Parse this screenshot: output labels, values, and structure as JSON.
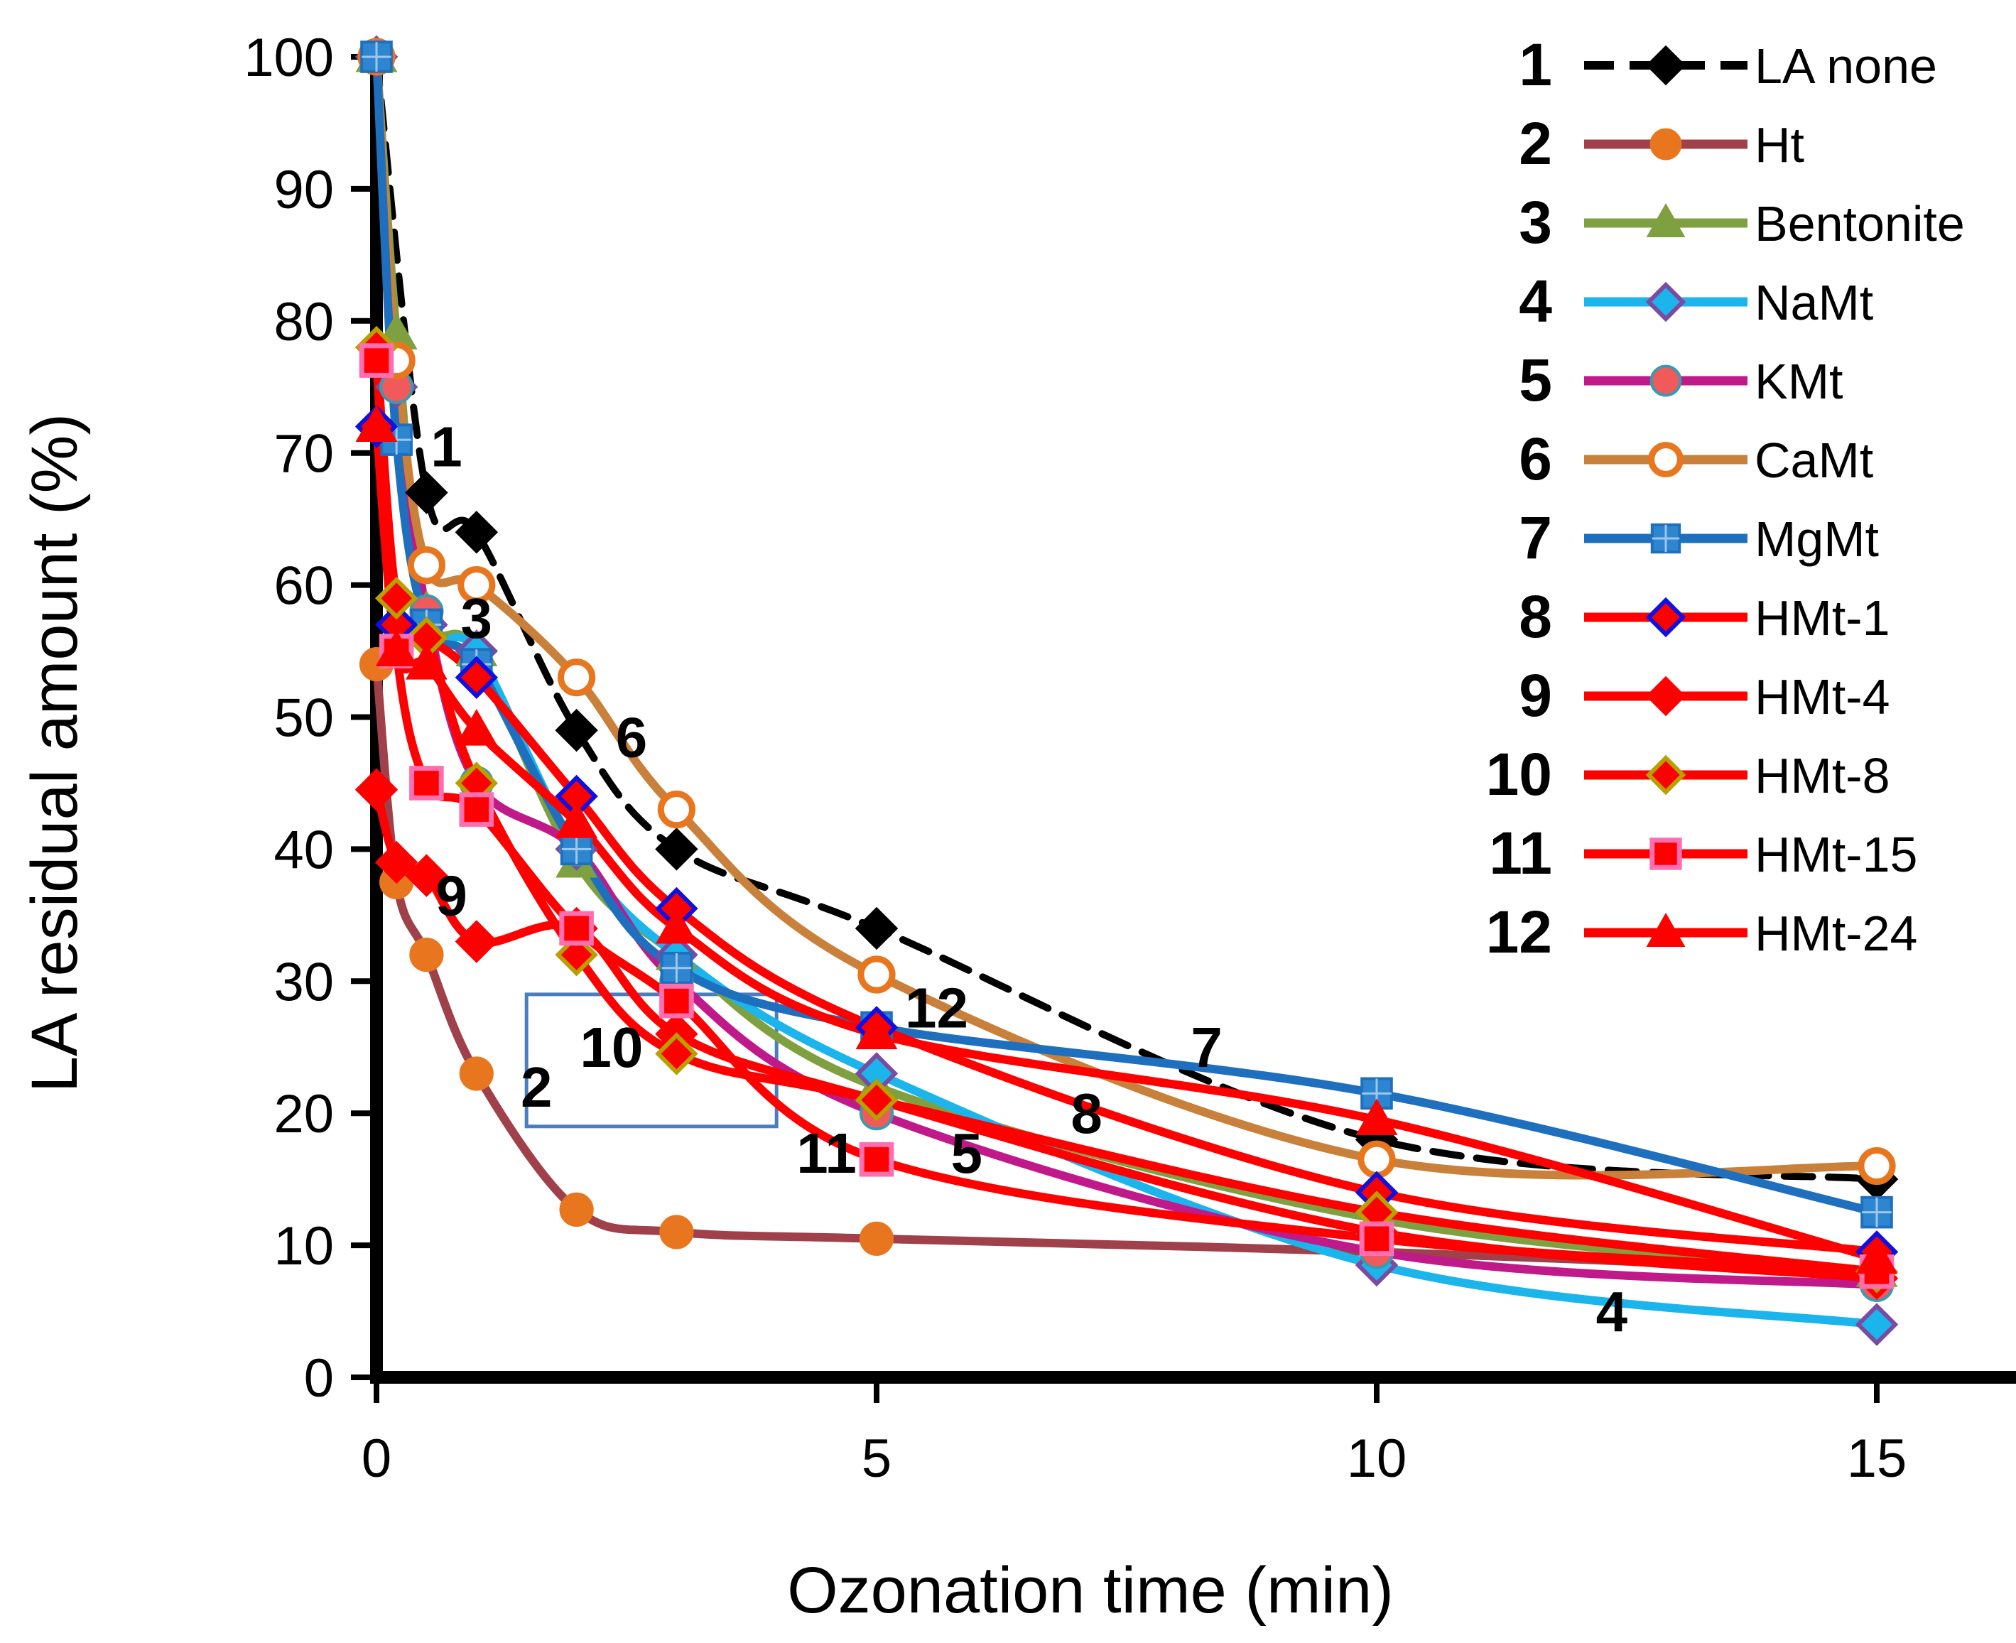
{
  "chart_data": {
    "type": "line",
    "title": "",
    "xlabel": "Ozonation time (min)",
    "ylabel": "LA residual amount (%)",
    "xlim": [
      0,
      16
    ],
    "ylim": [
      0,
      100
    ],
    "xticks": [
      0,
      5,
      10,
      15
    ],
    "yticks": [
      0,
      10,
      20,
      30,
      40,
      50,
      60,
      70,
      80,
      90,
      100
    ],
    "grid": false,
    "legend_position": "top-right",
    "series": [
      {
        "id": 1,
        "name": "LA none",
        "color": "#000000",
        "dash": true,
        "marker": "diamond",
        "marker_fill": "#000000",
        "marker_stroke": "#000000",
        "x": [
          0,
          0.5,
          1,
          2,
          3,
          5,
          10,
          15
        ],
        "y": [
          100,
          67,
          64,
          49,
          40,
          34,
          18,
          15
        ]
      },
      {
        "id": 2,
        "name": "Ht",
        "color": "#A0404A",
        "dash": false,
        "marker": "circle",
        "marker_fill": "#E8761E",
        "marker_stroke": "#E8761E",
        "x": [
          0,
          0.2,
          0.5,
          1,
          2,
          3,
          5,
          10,
          15
        ],
        "y": [
          54,
          37.5,
          32,
          23,
          12.7,
          11,
          10.5,
          9.5,
          8
        ]
      },
      {
        "id": 3,
        "name": "Bentonite",
        "color": "#7FA040",
        "dash": false,
        "marker": "triangle",
        "marker_fill": "#7FA040",
        "marker_stroke": "#7FA040",
        "x": [
          0,
          0.2,
          0.5,
          1,
          2,
          3,
          5,
          10,
          15
        ],
        "y": [
          100,
          79,
          58,
          55,
          39,
          32,
          22,
          12,
          8
        ]
      },
      {
        "id": 4,
        "name": "NaMt",
        "color": "#1BB5EC",
        "dash": false,
        "marker": "diamond",
        "marker_fill": "#1BB5EC",
        "marker_stroke": "#7A4BA0",
        "x": [
          0,
          0.2,
          0.5,
          1,
          2,
          3,
          5,
          10,
          15
        ],
        "y": [
          100,
          75,
          57,
          55,
          40,
          32,
          23,
          8.5,
          4
        ]
      },
      {
        "id": 5,
        "name": "KMt",
        "color": "#C0198A",
        "dash": false,
        "marker": "circle",
        "marker_fill": "#F05A5A",
        "marker_stroke": "#3A9AB0",
        "x": [
          0,
          0.2,
          0.5,
          1,
          2,
          3,
          5,
          10,
          15
        ],
        "y": [
          100,
          75,
          58,
          45,
          40,
          30,
          20,
          9.5,
          7
        ]
      },
      {
        "id": 6,
        "name": "CaMt",
        "color": "#C9803A",
        "dash": false,
        "marker": "circle-open",
        "marker_fill": "#ffffff",
        "marker_stroke": "#E8761E",
        "x": [
          0,
          0.2,
          0.5,
          1,
          2,
          3,
          5,
          10,
          15
        ],
        "y": [
          100,
          77,
          61.5,
          60,
          53,
          43,
          30.5,
          16.5,
          16
        ]
      },
      {
        "id": 7,
        "name": "MgMt",
        "color": "#1F6FBF",
        "dash": false,
        "marker": "square-plus",
        "marker_fill": "#2E86D0",
        "marker_stroke": "#2E86D0",
        "x": [
          0,
          0.2,
          0.5,
          1,
          2,
          3,
          5,
          10,
          15
        ],
        "y": [
          100,
          71,
          57,
          54,
          40,
          31,
          26.5,
          21.5,
          12.5
        ]
      },
      {
        "id": 8,
        "name": "HMt-1",
        "color": "#FF0000",
        "dash": false,
        "marker": "diamond",
        "marker_fill": "#FF0000",
        "marker_stroke": "#1010E0",
        "x": [
          0,
          0.2,
          0.5,
          1,
          2,
          3,
          5,
          10,
          15
        ],
        "y": [
          72,
          57,
          56,
          53,
          44,
          35.5,
          26.5,
          14,
          9.5
        ]
      },
      {
        "id": 9,
        "name": "HMt-4",
        "color": "#FF0000",
        "dash": false,
        "marker": "diamond",
        "marker_fill": "#FF0000",
        "marker_stroke": "#FF0000",
        "x": [
          0,
          0.2,
          0.5,
          1,
          2,
          3,
          5,
          10,
          15
        ],
        "y": [
          44.5,
          39,
          38,
          33,
          34,
          26,
          21,
          11,
          7.5
        ]
      },
      {
        "id": 10,
        "name": "HMt-8",
        "color": "#FF0000",
        "dash": false,
        "marker": "diamond",
        "marker_fill": "#FF0000",
        "marker_stroke": "#B8A000",
        "x": [
          0,
          0.2,
          0.5,
          1,
          2,
          3,
          5,
          10,
          15
        ],
        "y": [
          78,
          59,
          56,
          45,
          32,
          24.5,
          21,
          12.5,
          8
        ]
      },
      {
        "id": 11,
        "name": "HMt-15",
        "color": "#FF0000",
        "dash": false,
        "marker": "square",
        "marker_fill": "#FF0000",
        "marker_stroke": "#FF6FB0",
        "x": [
          0,
          0.2,
          0.5,
          1,
          2,
          3,
          5,
          10,
          15
        ],
        "y": [
          77,
          55,
          45,
          43,
          34,
          28.5,
          16.5,
          10.5,
          8
        ]
      },
      {
        "id": 12,
        "name": "HMt-24",
        "color": "#FF0000",
        "dash": false,
        "marker": "triangle",
        "marker_fill": "#FF0000",
        "marker_stroke": "#FF0000",
        "x": [
          0,
          0.2,
          0.5,
          1,
          2,
          3,
          5,
          10,
          15
        ],
        "y": [
          72,
          55,
          54,
          49,
          42,
          34,
          26,
          19.5,
          9
        ]
      }
    ],
    "annotations": [
      {
        "text": "1",
        "x": 0.7,
        "y": 69
      },
      {
        "text": "3",
        "x": 1.0,
        "y": 56
      },
      {
        "text": "6",
        "x": 2.55,
        "y": 47
      },
      {
        "text": "9",
        "x": 0.75,
        "y": 35
      },
      {
        "text": "10",
        "x": 2.35,
        "y": 23.5
      },
      {
        "text": "2",
        "x": 1.6,
        "y": 20.5
      },
      {
        "text": "12",
        "x": 5.6,
        "y": 26.5
      },
      {
        "text": "7",
        "x": 8.3,
        "y": 23.5
      },
      {
        "text": "8",
        "x": 7.1,
        "y": 18.5
      },
      {
        "text": "11",
        "x": 4.5,
        "y": 15.5
      },
      {
        "text": "5",
        "x": 5.9,
        "y": 15.5
      },
      {
        "text": "4",
        "x": 12.35,
        "y": 3.5
      }
    ],
    "highlight_box": {
      "x0": 1.5,
      "x1": 4.0,
      "y0": 19,
      "y1": 29,
      "color": "#4A7DBF"
    }
  }
}
